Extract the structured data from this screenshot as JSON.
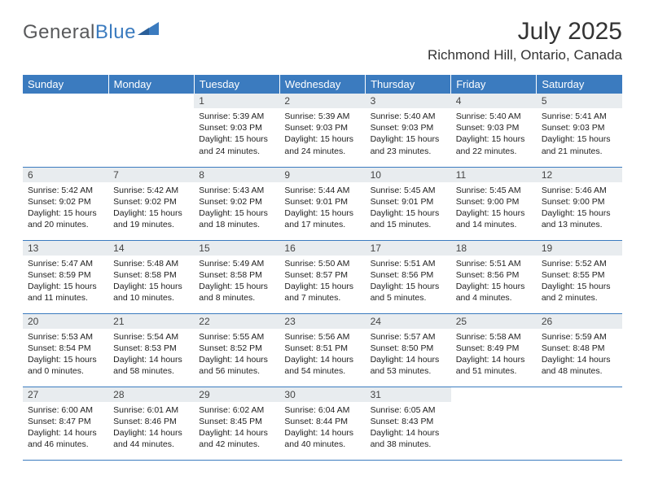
{
  "logo": {
    "part1": "General",
    "part2": "Blue"
  },
  "title": "July 2025",
  "location": "Richmond Hill, Ontario, Canada",
  "colors": {
    "header_bg": "#3b7bbf",
    "header_text": "#ffffff",
    "daynum_bg": "#e8ecef",
    "border": "#3b7bbf",
    "logo_gray": "#58595b",
    "logo_blue": "#3b7bbf"
  },
  "font": {
    "daynum_size": 12,
    "body_size": 10.5,
    "header_size": 13,
    "title_size": 30,
    "location_size": 17
  },
  "weekdays": [
    "Sunday",
    "Monday",
    "Tuesday",
    "Wednesday",
    "Thursday",
    "Friday",
    "Saturday"
  ],
  "weeks": [
    [
      null,
      null,
      {
        "n": "1",
        "sr": "Sunrise: 5:39 AM",
        "ss": "Sunset: 9:03 PM",
        "d1": "Daylight: 15 hours",
        "d2": "and 24 minutes."
      },
      {
        "n": "2",
        "sr": "Sunrise: 5:39 AM",
        "ss": "Sunset: 9:03 PM",
        "d1": "Daylight: 15 hours",
        "d2": "and 24 minutes."
      },
      {
        "n": "3",
        "sr": "Sunrise: 5:40 AM",
        "ss": "Sunset: 9:03 PM",
        "d1": "Daylight: 15 hours",
        "d2": "and 23 minutes."
      },
      {
        "n": "4",
        "sr": "Sunrise: 5:40 AM",
        "ss": "Sunset: 9:03 PM",
        "d1": "Daylight: 15 hours",
        "d2": "and 22 minutes."
      },
      {
        "n": "5",
        "sr": "Sunrise: 5:41 AM",
        "ss": "Sunset: 9:03 PM",
        "d1": "Daylight: 15 hours",
        "d2": "and 21 minutes."
      }
    ],
    [
      {
        "n": "6",
        "sr": "Sunrise: 5:42 AM",
        "ss": "Sunset: 9:02 PM",
        "d1": "Daylight: 15 hours",
        "d2": "and 20 minutes."
      },
      {
        "n": "7",
        "sr": "Sunrise: 5:42 AM",
        "ss": "Sunset: 9:02 PM",
        "d1": "Daylight: 15 hours",
        "d2": "and 19 minutes."
      },
      {
        "n": "8",
        "sr": "Sunrise: 5:43 AM",
        "ss": "Sunset: 9:02 PM",
        "d1": "Daylight: 15 hours",
        "d2": "and 18 minutes."
      },
      {
        "n": "9",
        "sr": "Sunrise: 5:44 AM",
        "ss": "Sunset: 9:01 PM",
        "d1": "Daylight: 15 hours",
        "d2": "and 17 minutes."
      },
      {
        "n": "10",
        "sr": "Sunrise: 5:45 AM",
        "ss": "Sunset: 9:01 PM",
        "d1": "Daylight: 15 hours",
        "d2": "and 15 minutes."
      },
      {
        "n": "11",
        "sr": "Sunrise: 5:45 AM",
        "ss": "Sunset: 9:00 PM",
        "d1": "Daylight: 15 hours",
        "d2": "and 14 minutes."
      },
      {
        "n": "12",
        "sr": "Sunrise: 5:46 AM",
        "ss": "Sunset: 9:00 PM",
        "d1": "Daylight: 15 hours",
        "d2": "and 13 minutes."
      }
    ],
    [
      {
        "n": "13",
        "sr": "Sunrise: 5:47 AM",
        "ss": "Sunset: 8:59 PM",
        "d1": "Daylight: 15 hours",
        "d2": "and 11 minutes."
      },
      {
        "n": "14",
        "sr": "Sunrise: 5:48 AM",
        "ss": "Sunset: 8:58 PM",
        "d1": "Daylight: 15 hours",
        "d2": "and 10 minutes."
      },
      {
        "n": "15",
        "sr": "Sunrise: 5:49 AM",
        "ss": "Sunset: 8:58 PM",
        "d1": "Daylight: 15 hours",
        "d2": "and 8 minutes."
      },
      {
        "n": "16",
        "sr": "Sunrise: 5:50 AM",
        "ss": "Sunset: 8:57 PM",
        "d1": "Daylight: 15 hours",
        "d2": "and 7 minutes."
      },
      {
        "n": "17",
        "sr": "Sunrise: 5:51 AM",
        "ss": "Sunset: 8:56 PM",
        "d1": "Daylight: 15 hours",
        "d2": "and 5 minutes."
      },
      {
        "n": "18",
        "sr": "Sunrise: 5:51 AM",
        "ss": "Sunset: 8:56 PM",
        "d1": "Daylight: 15 hours",
        "d2": "and 4 minutes."
      },
      {
        "n": "19",
        "sr": "Sunrise: 5:52 AM",
        "ss": "Sunset: 8:55 PM",
        "d1": "Daylight: 15 hours",
        "d2": "and 2 minutes."
      }
    ],
    [
      {
        "n": "20",
        "sr": "Sunrise: 5:53 AM",
        "ss": "Sunset: 8:54 PM",
        "d1": "Daylight: 15 hours",
        "d2": "and 0 minutes."
      },
      {
        "n": "21",
        "sr": "Sunrise: 5:54 AM",
        "ss": "Sunset: 8:53 PM",
        "d1": "Daylight: 14 hours",
        "d2": "and 58 minutes."
      },
      {
        "n": "22",
        "sr": "Sunrise: 5:55 AM",
        "ss": "Sunset: 8:52 PM",
        "d1": "Daylight: 14 hours",
        "d2": "and 56 minutes."
      },
      {
        "n": "23",
        "sr": "Sunrise: 5:56 AM",
        "ss": "Sunset: 8:51 PM",
        "d1": "Daylight: 14 hours",
        "d2": "and 54 minutes."
      },
      {
        "n": "24",
        "sr": "Sunrise: 5:57 AM",
        "ss": "Sunset: 8:50 PM",
        "d1": "Daylight: 14 hours",
        "d2": "and 53 minutes."
      },
      {
        "n": "25",
        "sr": "Sunrise: 5:58 AM",
        "ss": "Sunset: 8:49 PM",
        "d1": "Daylight: 14 hours",
        "d2": "and 51 minutes."
      },
      {
        "n": "26",
        "sr": "Sunrise: 5:59 AM",
        "ss": "Sunset: 8:48 PM",
        "d1": "Daylight: 14 hours",
        "d2": "and 48 minutes."
      }
    ],
    [
      {
        "n": "27",
        "sr": "Sunrise: 6:00 AM",
        "ss": "Sunset: 8:47 PM",
        "d1": "Daylight: 14 hours",
        "d2": "and 46 minutes."
      },
      {
        "n": "28",
        "sr": "Sunrise: 6:01 AM",
        "ss": "Sunset: 8:46 PM",
        "d1": "Daylight: 14 hours",
        "d2": "and 44 minutes."
      },
      {
        "n": "29",
        "sr": "Sunrise: 6:02 AM",
        "ss": "Sunset: 8:45 PM",
        "d1": "Daylight: 14 hours",
        "d2": "and 42 minutes."
      },
      {
        "n": "30",
        "sr": "Sunrise: 6:04 AM",
        "ss": "Sunset: 8:44 PM",
        "d1": "Daylight: 14 hours",
        "d2": "and 40 minutes."
      },
      {
        "n": "31",
        "sr": "Sunrise: 6:05 AM",
        "ss": "Sunset: 8:43 PM",
        "d1": "Daylight: 14 hours",
        "d2": "and 38 minutes."
      },
      null,
      null
    ]
  ]
}
